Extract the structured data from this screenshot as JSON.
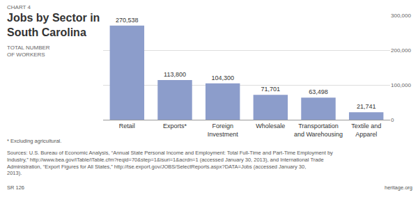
{
  "chart_data": {
    "type": "bar",
    "title": "Jobs by Sector in South Carolina",
    "subtitle": "TOTAL NUMBER OF WORKERS",
    "categories": [
      "Retail",
      "Exports*",
      "Foreign Investment",
      "Wholesale",
      "Transportation and Warehousing",
      "Textile and Apparel"
    ],
    "values": [
      270538,
      113800,
      104300,
      71701,
      63498,
      21741
    ],
    "value_labels": [
      "270,538",
      "113,800",
      "104,300",
      "71,701",
      "63,498",
      "21,741"
    ],
    "color": "#8c9dcb",
    "ylim": [
      0,
      300000
    ],
    "yticks": [
      0,
      {
        "value": 100000,
        "label": "100,000"
      },
      {
        "value": 200000,
        "label": "200,000"
      },
      {
        "value": 300000,
        "label": "300,000"
      }
    ],
    "grid": true,
    "data_labels": true,
    "annotations": [
      "CHART 4",
      "* Excluding agricultural.",
      "Sources: U.S. Bureau of Economic Analysis, “Annual State Personal Income and Employment: Total Full-Time and Part-Time Employment by Industry,” http://www.bea.gov/iTable/iTable.cfm?reqid=70&step=1&isuri=1&acrdn=1 (accessed January 30, 2013), and International Trade Administration, “Export Figures for All States,” http://tse.export.gov/JOBS/SelectReports.aspx?DATA=Jobs (accessed January 30, 2013).",
      "SR 126",
      "heritage.org"
    ]
  }
}
